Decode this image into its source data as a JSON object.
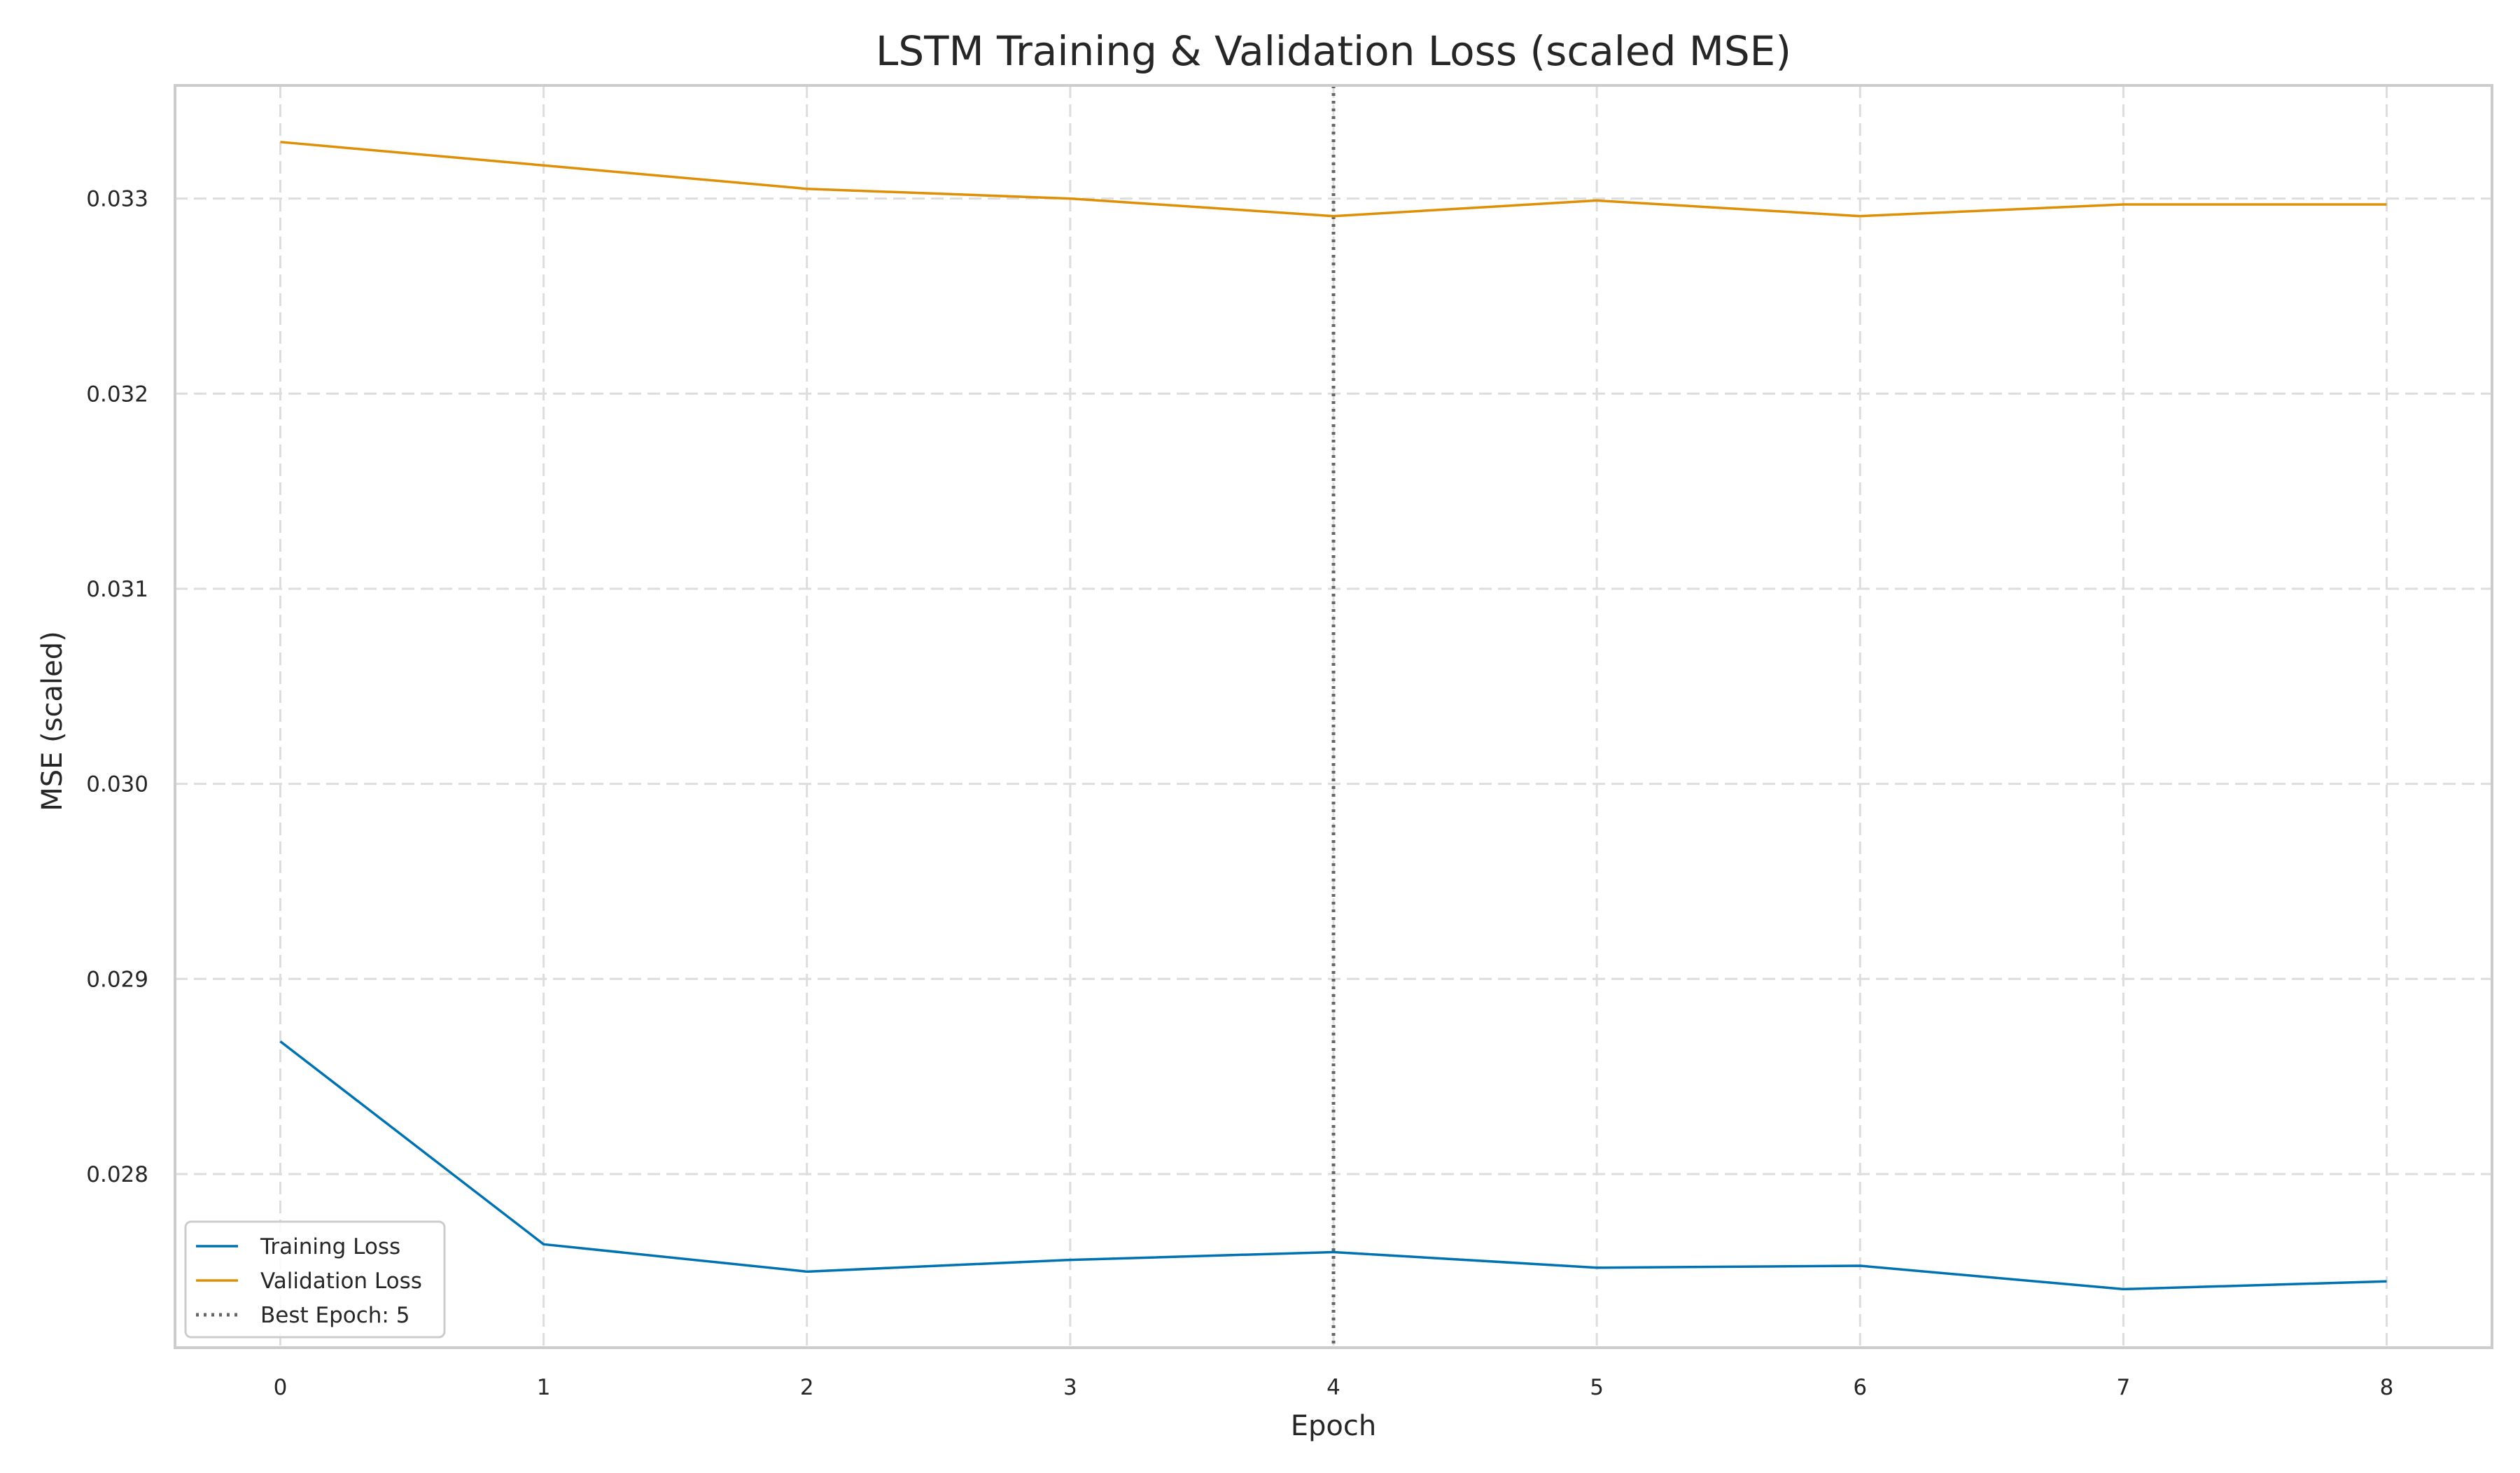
{
  "chart_data": {
    "type": "line",
    "title": "LSTM Training & Validation Loss (scaled MSE)",
    "xlabel": "Epoch",
    "ylabel": "MSE (scaled)",
    "x": [
      0,
      1,
      2,
      3,
      4,
      5,
      6,
      7,
      8
    ],
    "xticks": [
      "0",
      "1",
      "2",
      "3",
      "4",
      "5",
      "6",
      "7",
      "8"
    ],
    "yticks": [
      "0.028",
      "0.029",
      "0.030",
      "0.031",
      "0.032",
      "0.033"
    ],
    "ytick_values": [
      0.028,
      0.029,
      0.03,
      0.031,
      0.032,
      0.033
    ],
    "xlim": [
      -0.4,
      8.4
    ],
    "ylim": [
      0.02711,
      0.03358
    ],
    "grid": true,
    "legend_position": "lower-left",
    "series": [
      {
        "name": "Training Loss",
        "color": "#0072b2",
        "values": [
          0.02868,
          0.02764,
          0.0275,
          0.02756,
          0.0276,
          0.02752,
          0.02753,
          0.02741,
          0.02745
        ]
      },
      {
        "name": "Validation Loss",
        "color": "#de8f05",
        "values": [
          0.03329,
          0.03317,
          0.03305,
          0.033,
          0.03291,
          0.03299,
          0.03291,
          0.03297,
          0.03297
        ]
      }
    ],
    "reference_line": {
      "label": "Best Epoch: 5",
      "x": 4,
      "color": "#666666",
      "style": "dotted"
    }
  }
}
